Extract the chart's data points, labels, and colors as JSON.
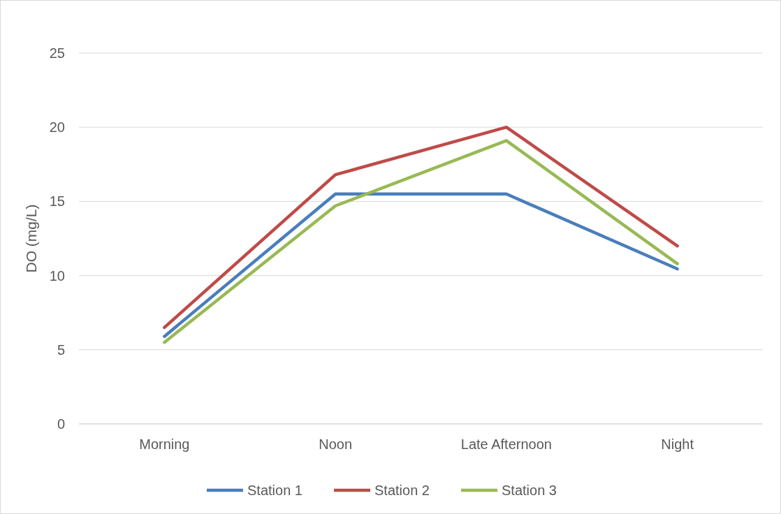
{
  "chart_data": {
    "type": "line",
    "ylabel": "DO (mg/L)",
    "categories": [
      "Morning",
      "Noon",
      "Late Afternoon",
      "Night"
    ],
    "series": [
      {
        "name": "Station 1",
        "color": "#4a7ebb",
        "values": [
          5.9,
          15.5,
          15.5,
          10.45
        ]
      },
      {
        "name": "Station 2",
        "color": "#be4b48",
        "values": [
          6.5,
          16.8,
          20.0,
          12.0
        ]
      },
      {
        "name": "Station 3",
        "color": "#98b954",
        "values": [
          5.5,
          14.7,
          19.1,
          10.8
        ]
      }
    ],
    "ylim": [
      0,
      25
    ],
    "yticks": [
      0,
      5,
      10,
      15,
      20,
      25
    ],
    "grid": "y",
    "legend": "bottom",
    "marker": "none",
    "line_style": "solid"
  }
}
